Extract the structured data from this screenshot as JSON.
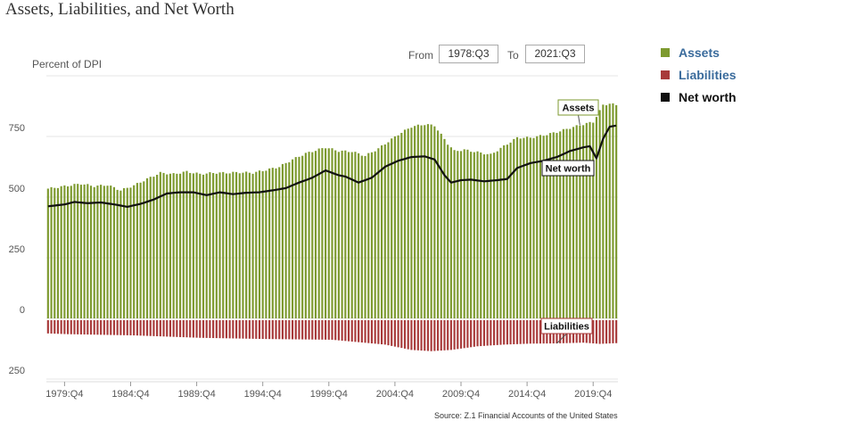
{
  "title": "Assets, Liabilities, and Net Worth",
  "range": {
    "from_label": "From",
    "from_value": "1978:Q3",
    "to_label": "To",
    "to_value": "2021:Q3"
  },
  "legend": [
    {
      "label": "Assets",
      "color": "#7d9a2f",
      "text_color": "#3a6b9c"
    },
    {
      "label": "Liabilities",
      "color": "#a83a3a",
      "text_color": "#3a6b9c"
    },
    {
      "label": "Net worth",
      "color": "#111111",
      "text_color": "#111111"
    }
  ],
  "source": "Source: Z.1 Financial Accounts of the United States",
  "chart_data": {
    "type": "bar+line",
    "ylabel": "Percent of DPI",
    "ylim": [
      -250,
      950
    ],
    "yticks": [
      {
        "value": 750,
        "label": "750"
      },
      {
        "value": 500,
        "label": "500"
      },
      {
        "value": 250,
        "label": "250"
      },
      {
        "value": 0,
        "label": "0"
      },
      {
        "value": -250,
        "label": "250"
      }
    ],
    "x_start": "1978:Q3",
    "x_end": "2021:Q3",
    "xticks": [
      "1979:Q4",
      "1984:Q4",
      "1989:Q4",
      "1994:Q4",
      "1999:Q4",
      "2004:Q4",
      "2009:Q4",
      "2014:Q4",
      "2019:Q4"
    ],
    "annotations": [
      {
        "text": "Assets",
        "series": "Assets",
        "quarter": "2018:Q4"
      },
      {
        "text": "Net worth",
        "series": "Net worth",
        "quarter": "2016:Q1"
      },
      {
        "text": "Liabilities",
        "series": "Liabilities",
        "quarter": "2017:Q1"
      }
    ],
    "series_anchors": {
      "Assets": [
        [
          1978.5,
          535
        ],
        [
          1979.75,
          545
        ],
        [
          1981,
          555
        ],
        [
          1982,
          545
        ],
        [
          1983,
          550
        ],
        [
          1984,
          528
        ],
        [
          1985,
          548
        ],
        [
          1986,
          575
        ],
        [
          1987,
          600
        ],
        [
          1988,
          595
        ],
        [
          1989,
          605
        ],
        [
          1990,
          595
        ],
        [
          1991,
          600
        ],
        [
          1992,
          600
        ],
        [
          1993,
          602
        ],
        [
          1994,
          600
        ],
        [
          1995,
          612
        ],
        [
          1996,
          625
        ],
        [
          1997,
          655
        ],
        [
          1998,
          680
        ],
        [
          1999.5,
          705
        ],
        [
          2000.5,
          690
        ],
        [
          2001.5,
          688
        ],
        [
          2002.5,
          670
        ],
        [
          2003.5,
          700
        ],
        [
          2005,
          758
        ],
        [
          2006,
          790
        ],
        [
          2007,
          800
        ],
        [
          2007.75,
          795
        ],
        [
          2008.75,
          720
        ],
        [
          2009.25,
          690
        ],
        [
          2010,
          695
        ],
        [
          2011,
          685
        ],
        [
          2012,
          675
        ],
        [
          2013,
          710
        ],
        [
          2014,
          745
        ],
        [
          2015,
          745
        ],
        [
          2016,
          755
        ],
        [
          2017,
          768
        ],
        [
          2018,
          785
        ],
        [
          2019,
          800
        ],
        [
          2019.75,
          810
        ],
        [
          2020.25,
          855
        ],
        [
          2020.5,
          880
        ],
        [
          2021,
          885
        ],
        [
          2021.5,
          880
        ]
      ],
      "Liabilities": [
        [
          1978.5,
          -62
        ],
        [
          1980,
          -65
        ],
        [
          1985,
          -70
        ],
        [
          1990,
          -80
        ],
        [
          1995,
          -85
        ],
        [
          2000,
          -88
        ],
        [
          2004,
          -108
        ],
        [
          2006,
          -130
        ],
        [
          2007.5,
          -135
        ],
        [
          2009,
          -130
        ],
        [
          2011,
          -115
        ],
        [
          2013,
          -108
        ],
        [
          2015,
          -104
        ],
        [
          2017,
          -103
        ],
        [
          2019,
          -100
        ],
        [
          2020.25,
          -105
        ],
        [
          2021.5,
          -102
        ]
      ],
      "Net worth": [
        [
          1978.5,
          462
        ],
        [
          1979.75,
          470
        ],
        [
          1980.5,
          480
        ],
        [
          1981.5,
          475
        ],
        [
          1982.5,
          478
        ],
        [
          1983.5,
          470
        ],
        [
          1984.5,
          460
        ],
        [
          1985.5,
          472
        ],
        [
          1986.5,
          490
        ],
        [
          1987.5,
          515
        ],
        [
          1988.5,
          520
        ],
        [
          1989.5,
          520
        ],
        [
          1990.5,
          508
        ],
        [
          1991.5,
          520
        ],
        [
          1992.5,
          512
        ],
        [
          1993.5,
          518
        ],
        [
          1994.5,
          520
        ],
        [
          1995.5,
          528
        ],
        [
          1996.5,
          537
        ],
        [
          1997.5,
          560
        ],
        [
          1998.5,
          580
        ],
        [
          1999.5,
          610
        ],
        [
          2000.5,
          590
        ],
        [
          2001,
          585
        ],
        [
          2002,
          560
        ],
        [
          2003,
          580
        ],
        [
          2004,
          625
        ],
        [
          2005,
          650
        ],
        [
          2006,
          665
        ],
        [
          2007,
          668
        ],
        [
          2007.75,
          655
        ],
        [
          2008.5,
          590
        ],
        [
          2009,
          560
        ],
        [
          2009.75,
          570
        ],
        [
          2010.5,
          572
        ],
        [
          2011.5,
          565
        ],
        [
          2012.5,
          570
        ],
        [
          2013.25,
          575
        ],
        [
          2014,
          620
        ],
        [
          2015,
          640
        ],
        [
          2016,
          650
        ],
        [
          2017,
          665
        ],
        [
          2018,
          690
        ],
        [
          2019,
          705
        ],
        [
          2019.5,
          710
        ],
        [
          2020,
          660
        ],
        [
          2020.5,
          740
        ],
        [
          2021,
          790
        ],
        [
          2021.5,
          795
        ]
      ]
    }
  }
}
